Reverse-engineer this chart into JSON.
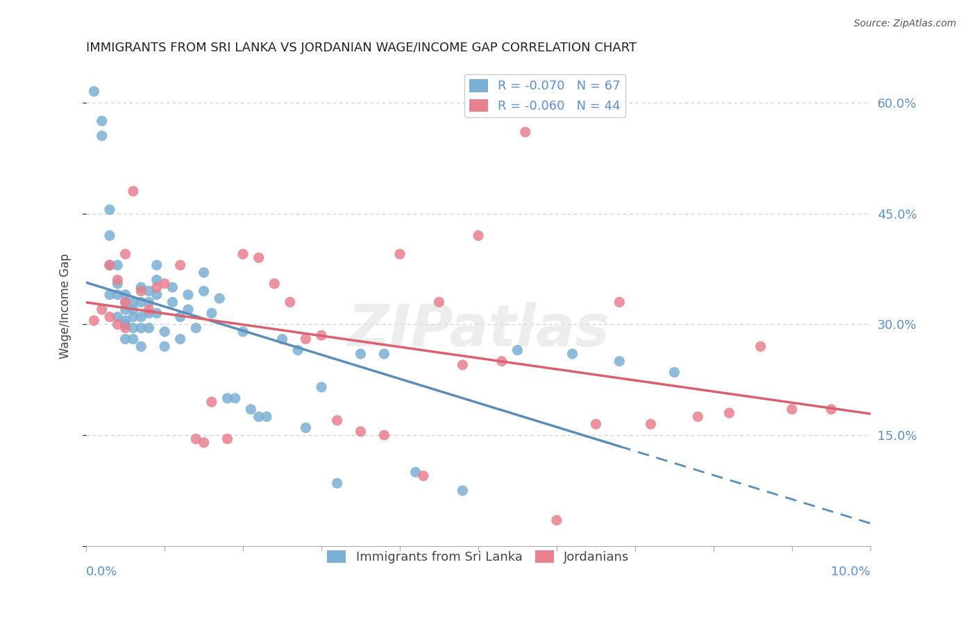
{
  "title": "IMMIGRANTS FROM SRI LANKA VS JORDANIAN WAGE/INCOME GAP CORRELATION CHART",
  "source": "Source: ZipAtlas.com",
  "ylabel": "Wage/Income Gap",
  "xlim": [
    0.0,
    0.1
  ],
  "ylim": [
    0.0,
    0.65
  ],
  "watermark": "ZIPatlas",
  "legend_sri_lanka_R": -0.07,
  "legend_sri_lanka_N": 67,
  "legend_jordanian_R": -0.06,
  "legend_jordanian_N": 44,
  "sri_lanka_color": "#7bafd4",
  "jordanian_color": "#e8808e",
  "trend_sri_lanka_color": "#5b8db8",
  "trend_jordanian_color": "#d9606e",
  "background_color": "#ffffff",
  "grid_color": "#cccccc",
  "axis_label_color": "#5b8fcc",
  "title_fontsize": 13,
  "sri_lanka_points_x": [
    0.001,
    0.002,
    0.002,
    0.003,
    0.003,
    0.003,
    0.003,
    0.004,
    0.004,
    0.004,
    0.004,
    0.005,
    0.005,
    0.005,
    0.005,
    0.005,
    0.005,
    0.006,
    0.006,
    0.006,
    0.006,
    0.006,
    0.007,
    0.007,
    0.007,
    0.007,
    0.007,
    0.008,
    0.008,
    0.008,
    0.008,
    0.009,
    0.009,
    0.009,
    0.009,
    0.01,
    0.01,
    0.011,
    0.011,
    0.012,
    0.012,
    0.013,
    0.013,
    0.014,
    0.015,
    0.015,
    0.016,
    0.017,
    0.018,
    0.019,
    0.02,
    0.021,
    0.022,
    0.023,
    0.025,
    0.027,
    0.028,
    0.03,
    0.032,
    0.035,
    0.038,
    0.042,
    0.048,
    0.055,
    0.062,
    0.068,
    0.075
  ],
  "sri_lanka_points_y": [
    0.615,
    0.575,
    0.555,
    0.455,
    0.42,
    0.38,
    0.34,
    0.38,
    0.355,
    0.34,
    0.31,
    0.34,
    0.33,
    0.32,
    0.305,
    0.3,
    0.28,
    0.33,
    0.32,
    0.31,
    0.295,
    0.28,
    0.35,
    0.33,
    0.31,
    0.295,
    0.27,
    0.345,
    0.33,
    0.315,
    0.295,
    0.38,
    0.36,
    0.34,
    0.315,
    0.29,
    0.27,
    0.35,
    0.33,
    0.31,
    0.28,
    0.34,
    0.32,
    0.295,
    0.37,
    0.345,
    0.315,
    0.335,
    0.2,
    0.2,
    0.29,
    0.185,
    0.175,
    0.175,
    0.28,
    0.265,
    0.16,
    0.215,
    0.085,
    0.26,
    0.26,
    0.1,
    0.075,
    0.265,
    0.26,
    0.25,
    0.235
  ],
  "jordanian_points_x": [
    0.001,
    0.002,
    0.003,
    0.003,
    0.004,
    0.004,
    0.005,
    0.005,
    0.005,
    0.006,
    0.007,
    0.008,
    0.009,
    0.01,
    0.012,
    0.014,
    0.015,
    0.016,
    0.018,
    0.02,
    0.022,
    0.024,
    0.026,
    0.028,
    0.03,
    0.032,
    0.035,
    0.038,
    0.04,
    0.043,
    0.045,
    0.048,
    0.05,
    0.053,
    0.056,
    0.06,
    0.065,
    0.068,
    0.072,
    0.078,
    0.082,
    0.086,
    0.09,
    0.095
  ],
  "jordanian_points_y": [
    0.305,
    0.32,
    0.38,
    0.31,
    0.36,
    0.3,
    0.395,
    0.33,
    0.295,
    0.48,
    0.345,
    0.32,
    0.35,
    0.355,
    0.38,
    0.145,
    0.14,
    0.195,
    0.145,
    0.395,
    0.39,
    0.355,
    0.33,
    0.28,
    0.285,
    0.17,
    0.155,
    0.15,
    0.395,
    0.095,
    0.33,
    0.245,
    0.42,
    0.25,
    0.56,
    0.035,
    0.165,
    0.33,
    0.165,
    0.175,
    0.18,
    0.27,
    0.185,
    0.185
  ]
}
